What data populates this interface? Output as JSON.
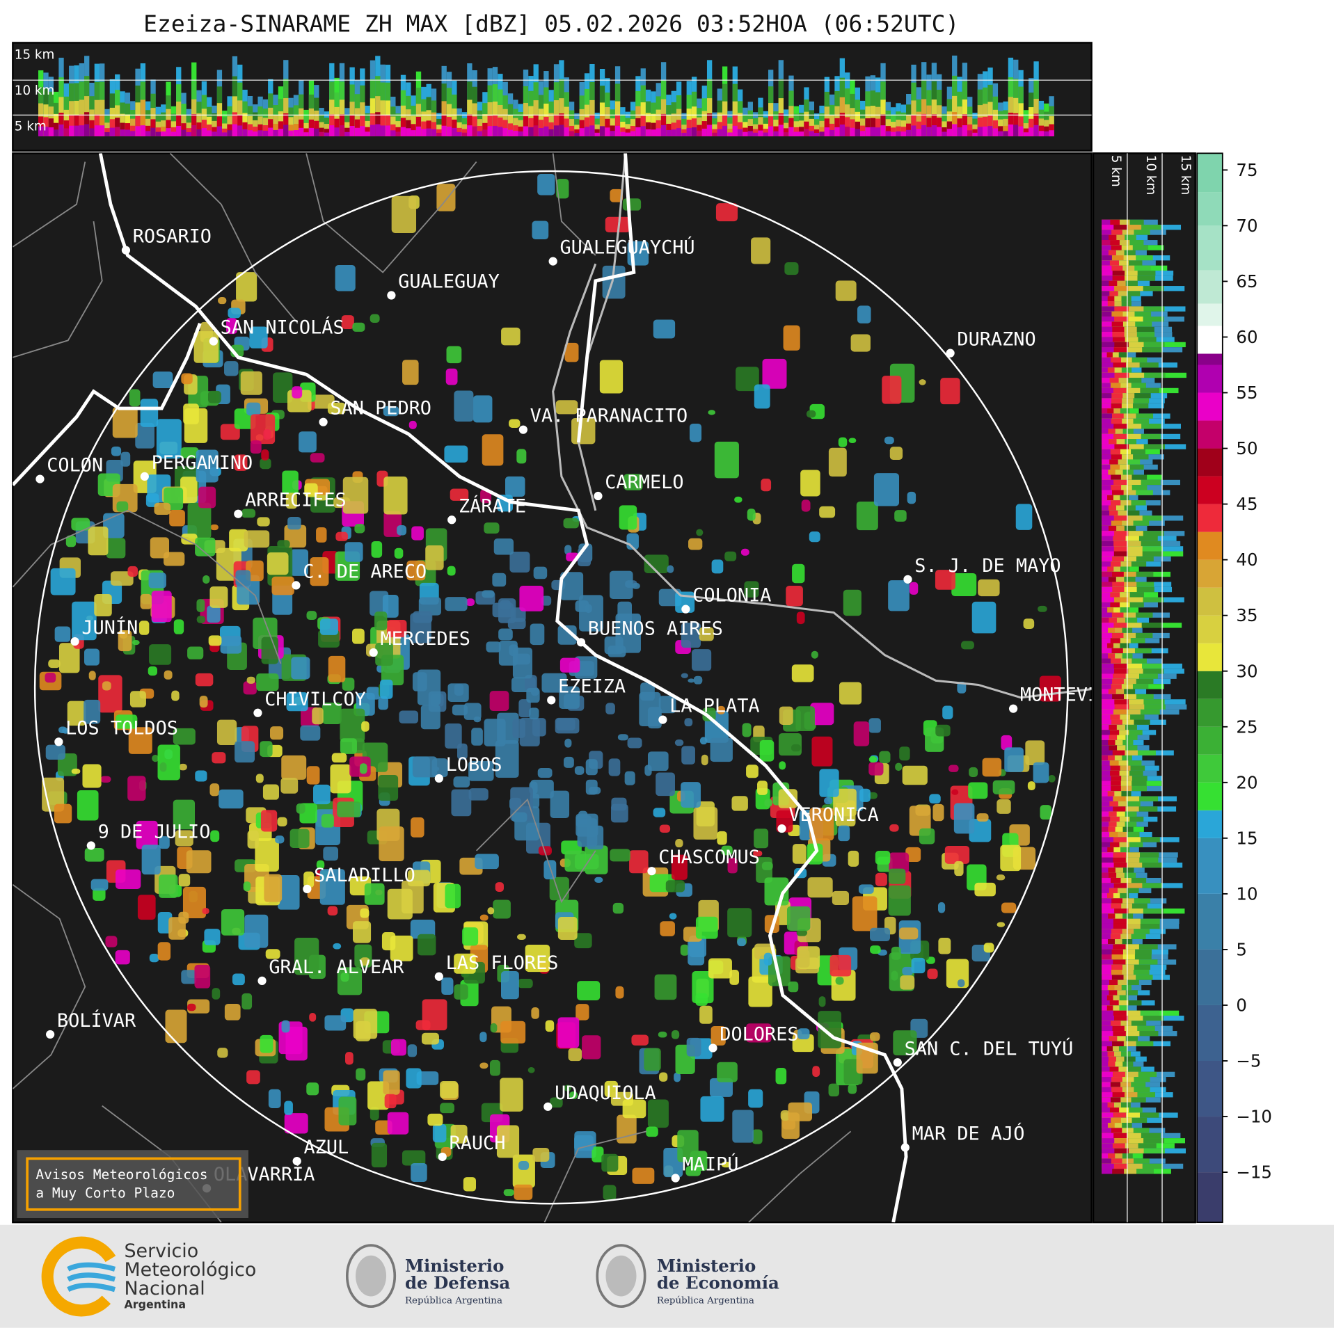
{
  "title": "Ezeiza-SINARAME ZH MAX [dBZ] 05.02.2026 03:52HOA (06:52UTC)",
  "top_panel": {
    "labels": [
      "15 km",
      "10 km",
      "5 km"
    ]
  },
  "side_panel": {
    "labels": [
      "5 km",
      "10 km",
      "15 km"
    ]
  },
  "cities": [
    "ROSARIO",
    "GUALEGUAYCHÚ",
    "GUALEGUAY",
    "SAN NICOLÁS",
    "DURAZNO",
    "SAN PEDRO",
    "VA. PARANACITO",
    "COLON",
    "PERGAMINO",
    "CARMELO",
    "ARRECIFES",
    "ZÁRATE",
    "S. J. DE MAYO",
    "C. DE ARECO",
    "COLONIA",
    "BUENOS AIRES",
    "JUNÍN",
    "MERCEDES",
    "EZEIZA",
    "MONTEVIDEO",
    "CHIVILCOY",
    "LA PLATA",
    "LOS TOLDOS",
    "LOBOS",
    "VERONICA",
    "9 DE JULIO",
    "CHASCOMUS",
    "SALADILLO",
    "GRAL. ALVEAR",
    "LAS FLORES",
    "BOLÍVAR",
    "DOLORES",
    "SAN C. DEL TUYÚ",
    "UDAQUIOLA",
    "MAR DE AJÓ",
    "RAUCH",
    "AZUL",
    "MAIPÚ",
    "OLAVARRÍA"
  ],
  "notice": [
    "Avisos Meteorológicos",
    "a Muy Corto Plazo"
  ],
  "colorbar": {
    "lim": [
      -19.5,
      76.5
    ],
    "ticks": [
      75,
      70,
      65,
      60,
      55,
      50,
      45,
      40,
      35,
      30,
      25,
      20,
      15,
      10,
      5,
      0,
      {
        "value": -5,
        "label": "−5"
      },
      {
        "value": -10,
        "label": "−10"
      },
      {
        "value": -15,
        "label": "−15"
      }
    ],
    "bands": [
      {
        "from": -20,
        "color": "#3a3d6b"
      },
      {
        "from": -15,
        "color": "#3d4a7a"
      },
      {
        "from": -10,
        "color": "#3e5686"
      },
      {
        "from": -5,
        "color": "#3d6290"
      },
      {
        "from": 0,
        "color": "#3b7099"
      },
      {
        "from": 5,
        "color": "#3a80a8"
      },
      {
        "from": 10,
        "color": "#3890bf"
      },
      {
        "from": 15,
        "color": "#2aa6d8"
      },
      {
        "from": 17.5,
        "color": "#36e032"
      },
      {
        "from": 20,
        "color": "#3fc93a"
      },
      {
        "from": 22.5,
        "color": "#3bb035"
      },
      {
        "from": 25,
        "color": "#36992f"
      },
      {
        "from": 27.5,
        "color": "#2a7a25"
      },
      {
        "from": 30,
        "color": "#e8e63a"
      },
      {
        "from": 32.5,
        "color": "#d8d040"
      },
      {
        "from": 35,
        "color": "#cfc040"
      },
      {
        "from": 37.5,
        "color": "#d8a535"
      },
      {
        "from": 40,
        "color": "#e08a20"
      },
      {
        "from": 42.5,
        "color": "#ee2a3a"
      },
      {
        "from": 45,
        "color": "#cc0020"
      },
      {
        "from": 47.5,
        "color": "#a0001a"
      },
      {
        "from": 50,
        "color": "#c4006a"
      },
      {
        "from": 52.5,
        "color": "#ea00c8"
      },
      {
        "from": 55,
        "color": "#b000b0"
      },
      {
        "from": 57.5,
        "color": "#8a008a"
      },
      {
        "from": 58.5,
        "color": "#ffffff"
      },
      {
        "from": 61,
        "color": "#e0f5ea"
      },
      {
        "from": 63,
        "color": "#bfe9d4"
      },
      {
        "from": 66,
        "color": "#a6e2c6"
      },
      {
        "from": 70,
        "color": "#8fdab8"
      },
      {
        "from": 73,
        "color": "#7fd4ad"
      }
    ]
  },
  "footer": {
    "smn": [
      "Servicio",
      "Meteorológico",
      "Nacional",
      "Argentina"
    ],
    "defensa": [
      "Ministerio",
      "de Defensa",
      "República Argentina"
    ],
    "economia": [
      "Ministerio",
      "de Economía",
      "República Argentina"
    ]
  }
}
